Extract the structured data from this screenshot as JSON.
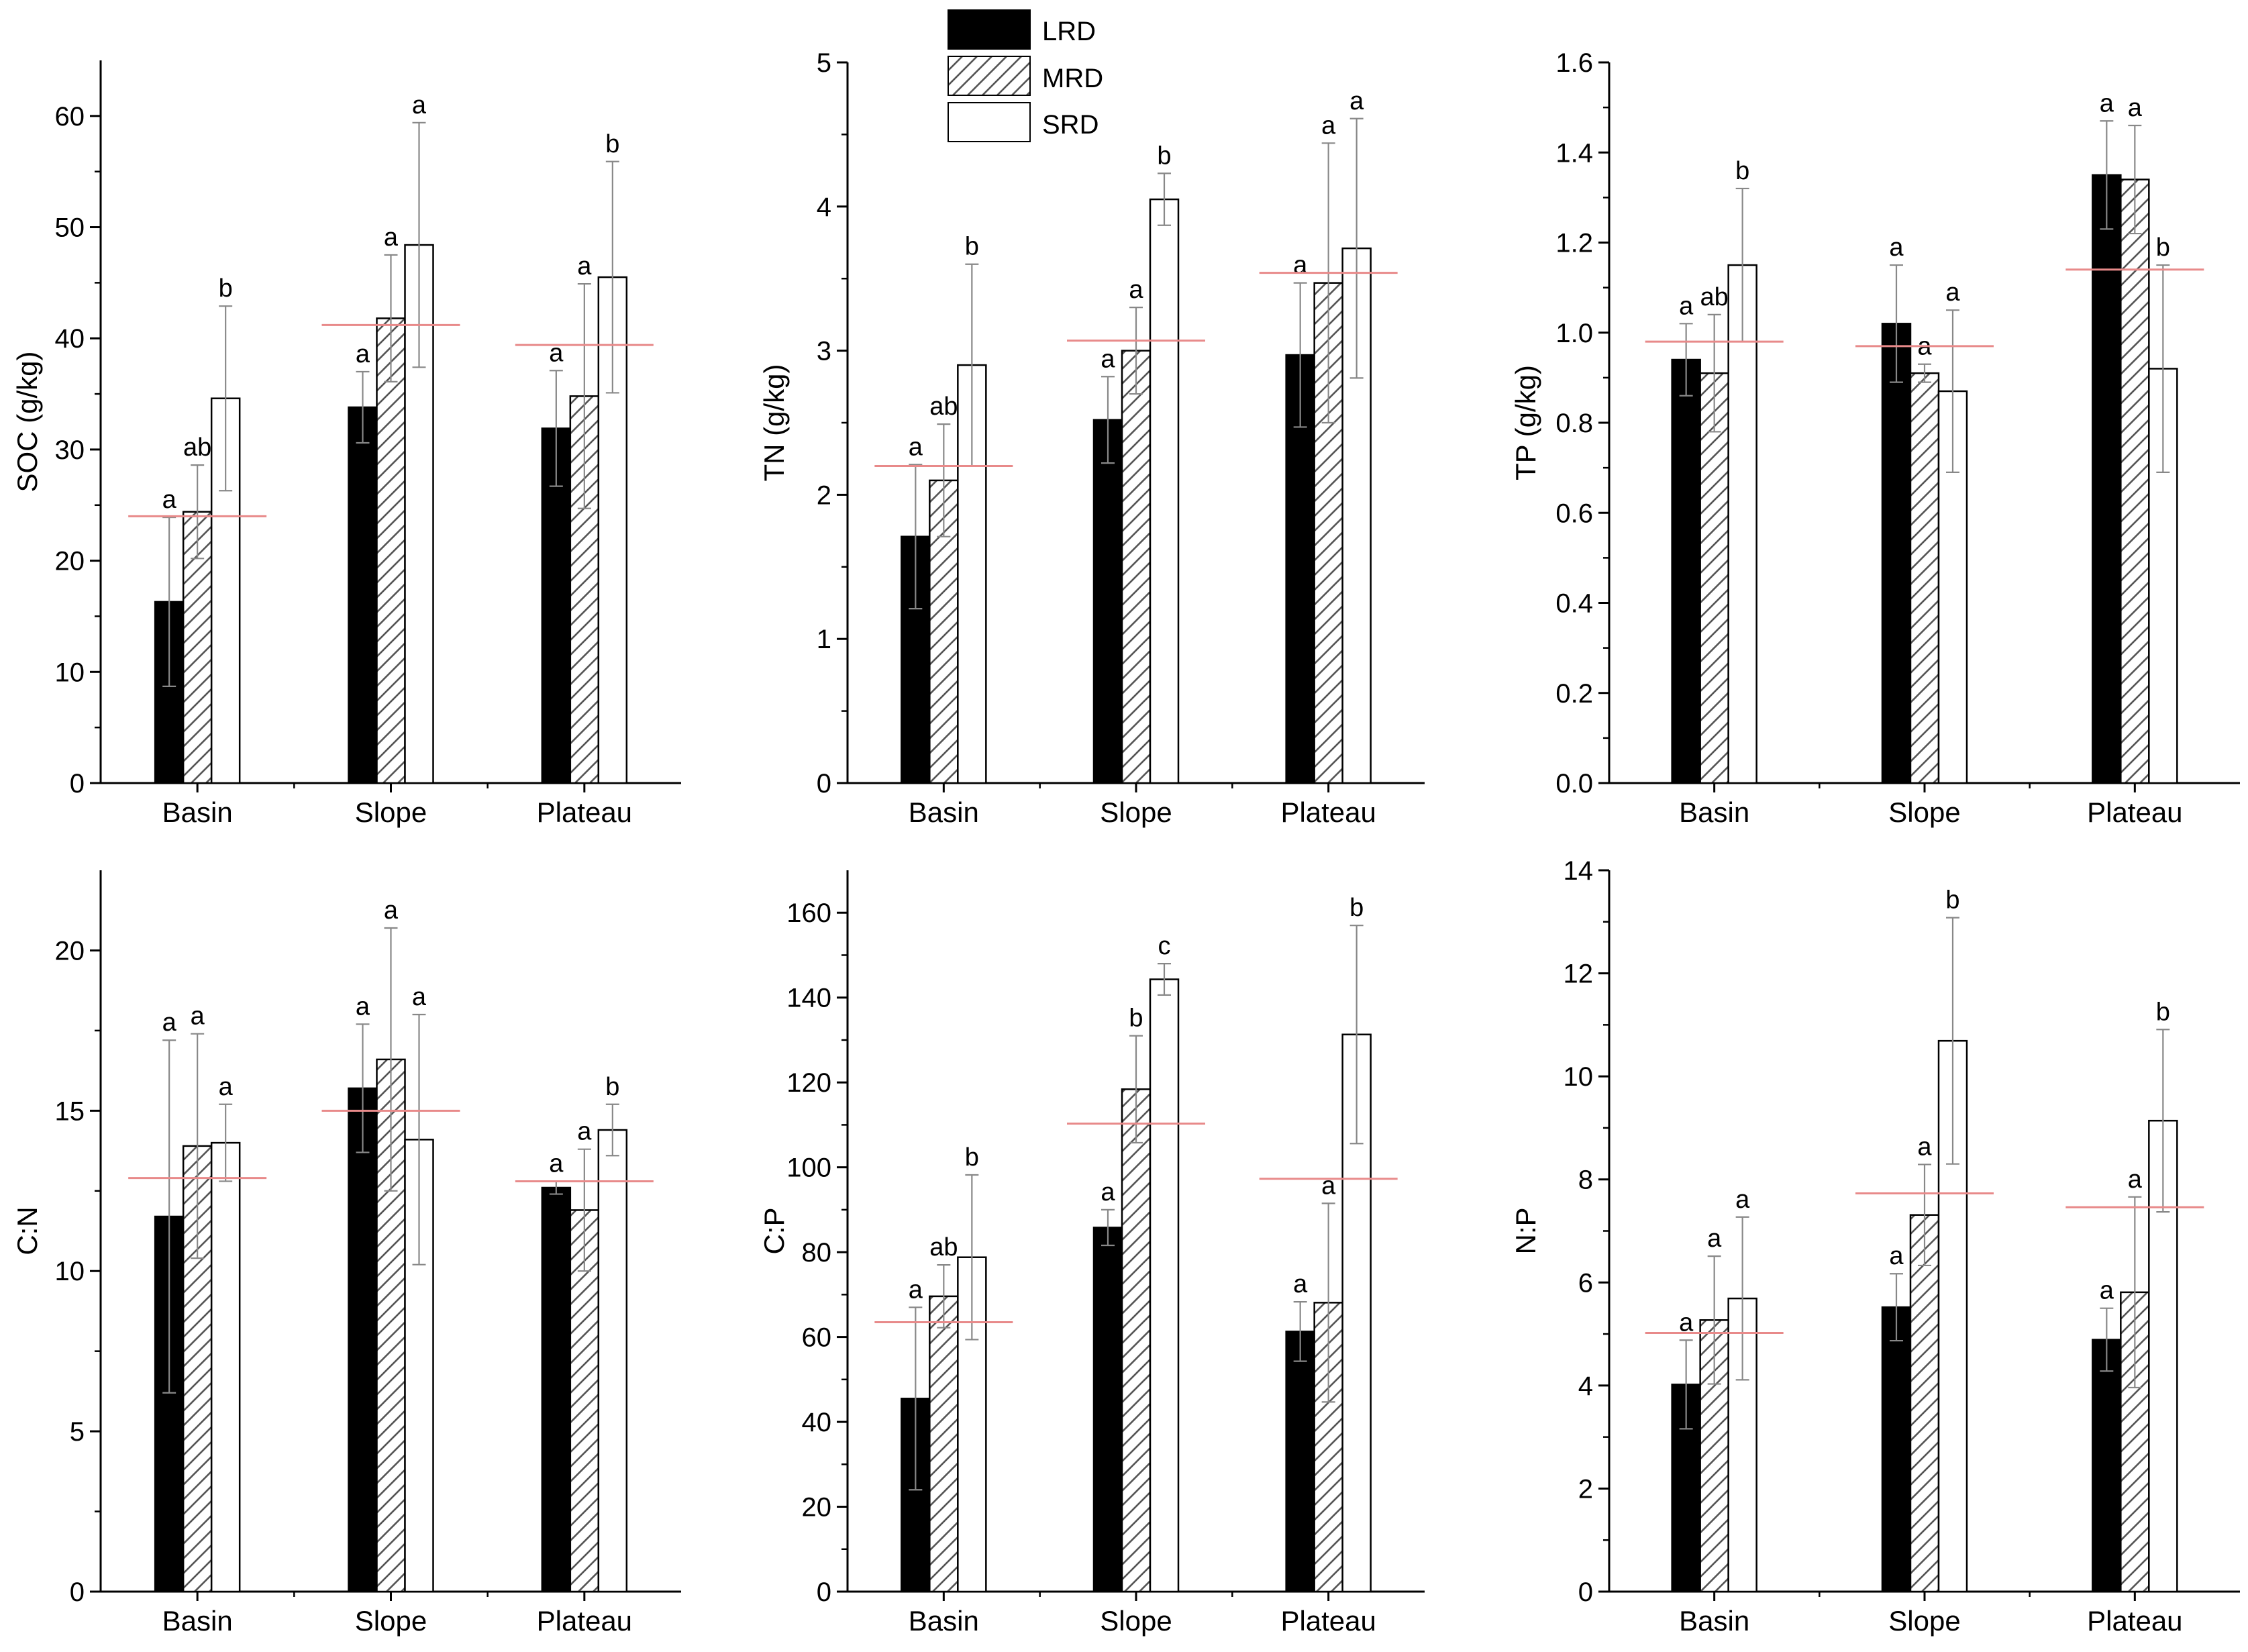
{
  "colors": {
    "lrd_fill": "#000000",
    "mrd_hatch": "#555555",
    "srd_fill": "#ffffff",
    "bar_stroke": "#000000",
    "error_bar": "#888888",
    "mean_line": "#e88a8a",
    "axis": "#000000"
  },
  "legend": [
    {
      "name": "LRD",
      "pattern": "solid-black"
    },
    {
      "name": "MRD",
      "pattern": "hatched"
    },
    {
      "name": "SRD",
      "pattern": "white"
    }
  ],
  "chart_data": [
    {
      "type": "bar",
      "id": "soc",
      "ylabel": "SOC (g/kg)",
      "categories": [
        "Basin",
        "Slope",
        "Plateau"
      ],
      "ylim": [
        0,
        65
      ],
      "yticks": [
        "0",
        "10",
        "20",
        "30",
        "40",
        "50",
        "60"
      ],
      "tick_values": [
        0,
        10,
        20,
        30,
        40,
        50,
        60
      ],
      "series": [
        {
          "name": "LRD",
          "values": [
            16.3,
            33.8,
            31.9
          ],
          "errors": [
            7.6,
            3.2,
            5.2
          ],
          "labels": [
            "a",
            "a",
            "a"
          ]
        },
        {
          "name": "MRD",
          "values": [
            24.4,
            41.8,
            34.8
          ],
          "errors": [
            4.2,
            5.7,
            10.1
          ],
          "labels": [
            "ab",
            "a",
            "a"
          ]
        },
        {
          "name": "SRD",
          "values": [
            34.6,
            48.4,
            45.5
          ],
          "errors": [
            8.3,
            11.0,
            10.4
          ],
          "labels": [
            "b",
            "a",
            "b"
          ]
        }
      ],
      "means": [
        24.0,
        41.2,
        39.4
      ]
    },
    {
      "type": "bar",
      "id": "tn",
      "ylabel": "TN (g/kg)",
      "categories": [
        "Basin",
        "Slope",
        "Plateau"
      ],
      "ylim": [
        0,
        5
      ],
      "yticks": [
        "0",
        "1",
        "2",
        "3",
        "4",
        "5"
      ],
      "tick_values": [
        0,
        1,
        2,
        3,
        4,
        5
      ],
      "series": [
        {
          "name": "LRD",
          "values": [
            1.71,
            2.52,
            2.97
          ],
          "errors": [
            0.5,
            0.3,
            0.5
          ],
          "labels": [
            "a",
            "a",
            "a"
          ]
        },
        {
          "name": "MRD",
          "values": [
            2.1,
            3.0,
            3.47
          ],
          "errors": [
            0.39,
            0.3,
            0.97
          ],
          "labels": [
            "ab",
            "a",
            "a"
          ]
        },
        {
          "name": "SRD",
          "values": [
            2.9,
            4.05,
            3.71
          ],
          "errors": [
            0.7,
            0.18,
            0.9
          ],
          "labels": [
            "b",
            "b",
            "a"
          ]
        }
      ],
      "means": [
        2.2,
        3.07,
        3.54
      ]
    },
    {
      "type": "bar",
      "id": "tp",
      "ylabel": "TP (g/kg)",
      "categories": [
        "Basin",
        "Slope",
        "Plateau"
      ],
      "ylim": [
        0,
        1.6
      ],
      "yticks": [
        "0.0",
        "0.2",
        "0.4",
        "0.6",
        "0.8",
        "1.0",
        "1.2",
        "1.4",
        "1.6"
      ],
      "tick_values": [
        0,
        0.2,
        0.4,
        0.6,
        0.8,
        1.0,
        1.2,
        1.4,
        1.6
      ],
      "series": [
        {
          "name": "LRD",
          "values": [
            0.94,
            1.02,
            1.35
          ],
          "errors": [
            0.08,
            0.13,
            0.12
          ],
          "labels": [
            "a",
            "a",
            "a"
          ]
        },
        {
          "name": "MRD",
          "values": [
            0.91,
            0.91,
            1.34
          ],
          "errors": [
            0.13,
            0.02,
            0.12
          ],
          "labels": [
            "ab",
            "a",
            "a"
          ]
        },
        {
          "name": "SRD",
          "values": [
            1.15,
            0.87,
            0.92
          ],
          "errors": [
            0.17,
            0.18,
            0.23
          ],
          "labels": [
            "b",
            "a",
            "b"
          ]
        }
      ],
      "means": [
        0.98,
        0.97,
        1.14
      ]
    },
    {
      "type": "bar",
      "id": "cn",
      "ylabel": "C:N",
      "categories": [
        "Basin",
        "Slope",
        "Plateau"
      ],
      "ylim": [
        0,
        22.5
      ],
      "yticks": [
        "0",
        "5",
        "10",
        "15",
        "20"
      ],
      "tick_values": [
        0,
        5,
        10,
        15,
        20
      ],
      "series": [
        {
          "name": "LRD",
          "values": [
            11.7,
            15.7,
            12.6
          ],
          "errors": [
            5.5,
            2.0,
            0.2
          ],
          "labels": [
            "a",
            "a",
            "a"
          ]
        },
        {
          "name": "MRD",
          "values": [
            13.9,
            16.6,
            11.9
          ],
          "errors": [
            3.5,
            4.1,
            1.9
          ],
          "labels": [
            "a",
            "a",
            "a"
          ]
        },
        {
          "name": "SRD",
          "values": [
            14.0,
            14.1,
            14.4
          ],
          "errors": [
            1.2,
            3.9,
            0.8
          ],
          "labels": [
            "a",
            "a",
            "b"
          ]
        }
      ],
      "means": [
        12.9,
        15.0,
        12.8
      ]
    },
    {
      "type": "bar",
      "id": "cp",
      "ylabel": "C:P",
      "categories": [
        "Basin",
        "Slope",
        "Plateau"
      ],
      "ylim": [
        0,
        170
      ],
      "yticks": [
        "0",
        "20",
        "40",
        "60",
        "80",
        "100",
        "120",
        "140",
        "160"
      ],
      "tick_values": [
        0,
        20,
        40,
        60,
        80,
        100,
        120,
        140,
        160
      ],
      "series": [
        {
          "name": "LRD",
          "values": [
            45.5,
            85.8,
            61.3
          ],
          "errors": [
            21.5,
            4.2,
            7.0
          ],
          "labels": [
            "a",
            "a",
            "a"
          ]
        },
        {
          "name": "MRD",
          "values": [
            69.6,
            118.4,
            68.1
          ],
          "errors": [
            7.4,
            12.6,
            23.4
          ],
          "labels": [
            "ab",
            "b",
            "a"
          ]
        },
        {
          "name": "SRD",
          "values": [
            78.8,
            144.3,
            131.3
          ],
          "errors": [
            19.4,
            3.7,
            25.7
          ],
          "labels": [
            "b",
            "c",
            "b"
          ]
        }
      ],
      "means": [
        63.5,
        110.3,
        97.3
      ]
    },
    {
      "type": "bar",
      "id": "np",
      "ylabel": "N:P",
      "categories": [
        "Basin",
        "Slope",
        "Plateau"
      ],
      "ylim": [
        0,
        14
      ],
      "yticks": [
        "0",
        "2",
        "4",
        "6",
        "8",
        "10",
        "12",
        "14"
      ],
      "tick_values": [
        0,
        2,
        4,
        6,
        8,
        10,
        12,
        14
      ],
      "series": [
        {
          "name": "LRD",
          "values": [
            4.02,
            5.52,
            4.89
          ],
          "errors": [
            0.86,
            0.65,
            0.61
          ],
          "labels": [
            "a",
            "a",
            "a"
          ]
        },
        {
          "name": "MRD",
          "values": [
            5.27,
            7.31,
            5.81
          ],
          "errors": [
            1.24,
            0.98,
            1.85
          ],
          "labels": [
            "a",
            "a",
            "a"
          ]
        },
        {
          "name": "SRD",
          "values": [
            5.69,
            10.69,
            9.14
          ],
          "errors": [
            1.58,
            2.39,
            1.77
          ],
          "labels": [
            "a",
            "b",
            "b"
          ]
        }
      ],
      "means": [
        5.02,
        7.73,
        7.46
      ]
    }
  ]
}
